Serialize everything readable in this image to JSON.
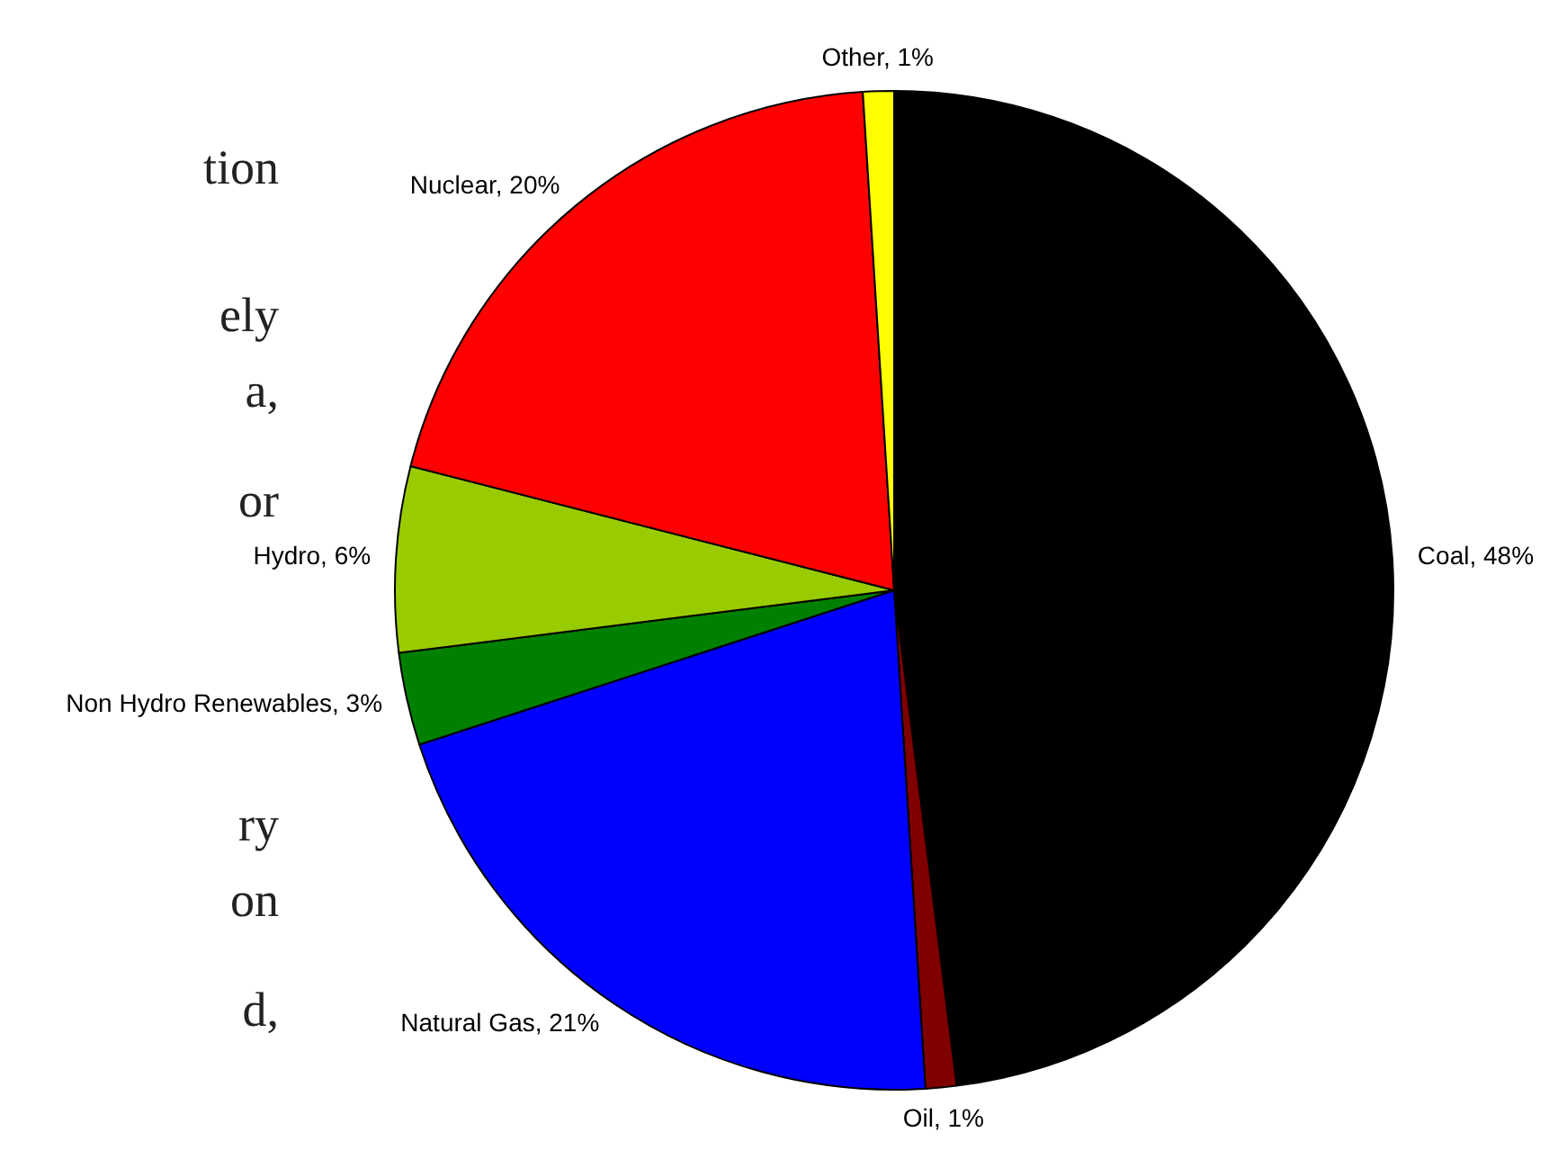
{
  "chart_data": {
    "type": "pie",
    "categories": [
      "Coal",
      "Oil",
      "Natural Gas",
      "Non Hydro Renewables",
      "Hydro",
      "Nuclear",
      "Other"
    ],
    "values": [
      48,
      1,
      21,
      3,
      6,
      20,
      1
    ],
    "colors": [
      "#000000",
      "#800000",
      "#0000ff",
      "#008000",
      "#99cc00",
      "#ff0000",
      "#ffff00"
    ],
    "value_labels": [
      "48%",
      "1%",
      "21%",
      "3%",
      "6%",
      "20%",
      "1%"
    ],
    "annotations": [
      "tion",
      "ely",
      "a,",
      "or",
      "ry",
      "on",
      "d,"
    ],
    "legend": false
  }
}
